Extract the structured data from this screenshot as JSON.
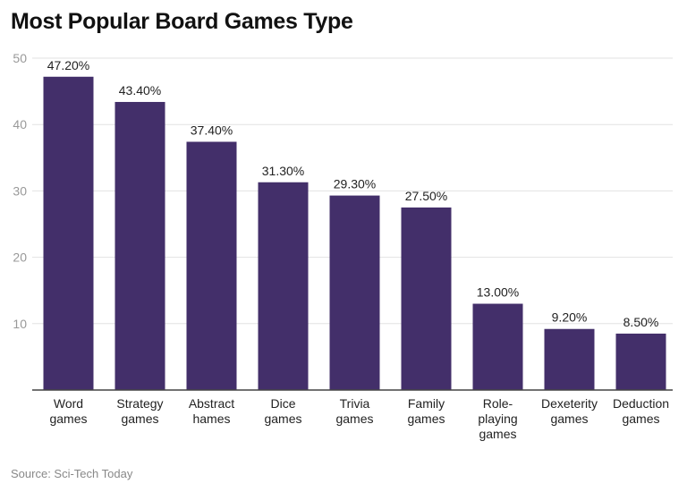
{
  "chart_data": {
    "type": "bar",
    "title": "Most Popular Board Games Type",
    "categories": [
      "Word\ngames",
      "Strategy\ngames",
      "Abstract\nhames",
      "Dice\ngames",
      "Trivia\ngames",
      "Family\ngames",
      "Role-\nplaying\ngames",
      "Dexeterity\ngames",
      "Deduction\ngames"
    ],
    "values": [
      47.2,
      43.4,
      37.4,
      31.3,
      29.3,
      27.5,
      13.0,
      9.2,
      8.5
    ],
    "data_labels": [
      "47.20%",
      "43.40%",
      "37.40%",
      "31.30%",
      "29.30%",
      "27.50%",
      "13.00%",
      "9.20%",
      "8.50%"
    ],
    "ylim": [
      0,
      50
    ],
    "yticks": [
      10,
      20,
      30,
      40,
      50
    ],
    "grid": true,
    "xlabel": "",
    "ylabel": "",
    "bar_color": "#432f6a",
    "source": "Source: Sci-Tech Today"
  }
}
